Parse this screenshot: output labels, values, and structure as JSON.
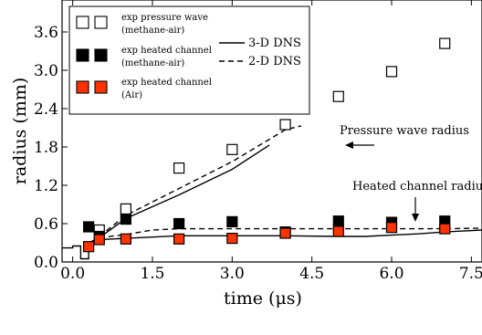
{
  "chart_data": {
    "type": "scatter",
    "xlabel": "time (μs)",
    "ylabel": "radius (mm)",
    "xlim": [
      -0.2,
      7.7
    ],
    "ylim": [
      0.0,
      4.1
    ],
    "xticks": [
      0.0,
      1.5,
      3.0,
      4.5,
      6.0,
      7.5
    ],
    "xtick_labels": [
      "0.0",
      "1.5",
      "3.0",
      "4.5",
      "6.0",
      "7.5"
    ],
    "yticks": [
      0.0,
      0.6,
      1.2,
      1.8,
      2.4,
      3.0,
      3.6
    ],
    "ytick_labels": [
      "0.0",
      "0.6",
      "1.2",
      "1.8",
      "2.4",
      "3.0",
      "3.6"
    ],
    "grid": false,
    "legend": {
      "placement": "top-left",
      "markers": [
        {
          "line1": "exp pressure wave",
          "line2": "(methane-air)",
          "fill": "#ffffff"
        },
        {
          "line1": "exp heated channel",
          "line2": "(methane-air)",
          "fill": "#000000"
        },
        {
          "line1": "exp heated channel",
          "line2": "(Air)",
          "fill": "#ff3300"
        }
      ],
      "lines": [
        {
          "label": "3-D DNS",
          "style": "solid"
        },
        {
          "label": "2-D DNS",
          "style": "dashed"
        }
      ]
    },
    "annotations": [
      "Pressure wave radius",
      "Heated channel radius"
    ],
    "series": [
      {
        "kind": "marker",
        "fill": "#ffffff",
        "stroke": "#000000",
        "x": [
          0.5,
          1.0,
          2.0,
          3.0,
          4.0,
          5.0,
          6.0,
          7.0
        ],
        "y": [
          0.5,
          0.83,
          1.47,
          1.76,
          2.15,
          2.59,
          2.98,
          3.42
        ]
      },
      {
        "kind": "marker",
        "fill": "#000000",
        "stroke": "#000000",
        "x": [
          0.3,
          0.5,
          1.0,
          2.0,
          3.0,
          4.0,
          5.0,
          6.0,
          7.0
        ],
        "y": [
          0.55,
          0.4,
          0.67,
          0.6,
          0.63,
          0.47,
          0.64,
          0.62,
          0.64
        ]
      },
      {
        "kind": "marker",
        "fill": "#ff3300",
        "stroke": "#000000",
        "x": [
          0.3,
          0.5,
          1.0,
          2.0,
          3.0,
          4.0,
          5.0,
          6.0,
          7.0
        ],
        "y": [
          0.24,
          0.35,
          0.36,
          0.36,
          0.37,
          0.45,
          0.48,
          0.54,
          0.52
        ]
      },
      {
        "kind": "line",
        "style": "solid",
        "name": "3-D DNS",
        "x": [
          -0.2,
          0.0,
          0.0,
          0.15,
          0.15,
          0.3,
          0.3,
          0.5,
          1.0,
          2.0,
          3.0,
          3.7
        ],
        "y": [
          0.22,
          0.22,
          0.25,
          0.25,
          0.05,
          0.05,
          0.3,
          0.38,
          0.68,
          1.05,
          1.45,
          1.83
        ]
      },
      {
        "kind": "line",
        "style": "dashed",
        "name": "2-D DNS",
        "x": [
          0.5,
          1.0,
          2.0,
          3.0,
          4.0,
          4.3
        ],
        "y": [
          0.4,
          0.73,
          1.15,
          1.57,
          2.07,
          2.13
        ]
      },
      {
        "kind": "line",
        "style": "solid",
        "name": "3-D DNS",
        "x": [
          0.5,
          1.0,
          1.5,
          2.0,
          3.0,
          4.0,
          5.0,
          5.5,
          6.0,
          6.5,
          7.0,
          7.7
        ],
        "y": [
          0.35,
          0.37,
          0.39,
          0.41,
          0.41,
          0.41,
          0.4,
          0.4,
          0.42,
          0.44,
          0.47,
          0.5
        ]
      },
      {
        "kind": "line",
        "style": "dashed",
        "name": "2-D DNS",
        "x": [
          0.5,
          1.0,
          1.5,
          2.0,
          3.0,
          4.0,
          5.0,
          6.0,
          7.0,
          7.7
        ],
        "y": [
          0.38,
          0.43,
          0.5,
          0.52,
          0.52,
          0.52,
          0.52,
          0.52,
          0.52,
          0.53
        ]
      }
    ]
  }
}
